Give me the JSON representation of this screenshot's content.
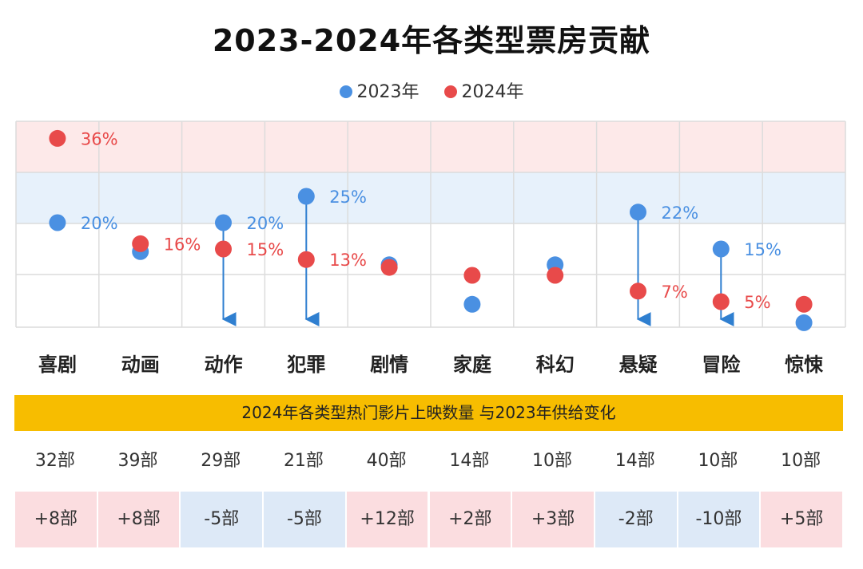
{
  "title": "2023-2024年各类型票房贡献",
  "legend": [
    {
      "label": "2023年",
      "color": "#4a90e2"
    },
    {
      "label": "2024年",
      "color": "#e84a4a"
    }
  ],
  "table_header": "2024年各类型热门影片上映数量 与2023年供给变化",
  "chart_data": {
    "type": "scatter",
    "title": "2023-2024年各类型票房贡献",
    "categories": [
      "喜剧",
      "动画",
      "动作",
      "犯罪",
      "剧情",
      "家庭",
      "科幻",
      "悬疑",
      "冒险",
      "惊悚"
    ],
    "ylim": [
      0,
      40
    ],
    "series": [
      {
        "name": "2023年",
        "color": "#4a90e2",
        "values": [
          20,
          14.5,
          20,
          25,
          12,
          4.5,
          12,
          22,
          15,
          1
        ]
      },
      {
        "name": "2024年",
        "color": "#e84a4a",
        "values": [
          36,
          16,
          15,
          13,
          11.5,
          10,
          10,
          7,
          5,
          4.5
        ]
      }
    ],
    "data_labels": [
      {
        "category": "喜剧",
        "series": "2024年",
        "text": "36%"
      },
      {
        "category": "喜剧",
        "series": "2023年",
        "text": "20%"
      },
      {
        "category": "动画",
        "series": "2024年",
        "text": "16%"
      },
      {
        "category": "动作",
        "series": "2023年",
        "text": "20%"
      },
      {
        "category": "动作",
        "series": "2024年",
        "text": "15%"
      },
      {
        "category": "犯罪",
        "series": "2023年",
        "text": "25%"
      },
      {
        "category": "犯罪",
        "series": "2024年",
        "text": "13%"
      },
      {
        "category": "悬疑",
        "series": "2023年",
        "text": "22%"
      },
      {
        "category": "悬疑",
        "series": "2024年",
        "text": "7%"
      },
      {
        "category": "冒险",
        "series": "2023年",
        "text": "15%"
      },
      {
        "category": "冒险",
        "series": "2024年",
        "text": "5%"
      }
    ],
    "decline_arrows": [
      "动作",
      "犯罪",
      "悬疑",
      "冒险"
    ],
    "grid": true,
    "legend_position": "top-center"
  },
  "table": {
    "counts": [
      "32部",
      "39部",
      "29部",
      "21部",
      "40部",
      "14部",
      "10部",
      "14部",
      "10部",
      "10部"
    ],
    "changes": [
      {
        "text": "+8部",
        "trend": "up"
      },
      {
        "text": "+8部",
        "trend": "up"
      },
      {
        "text": "-5部",
        "trend": "down"
      },
      {
        "text": "-5部",
        "trend": "down"
      },
      {
        "text": "+12部",
        "trend": "up"
      },
      {
        "text": "+2部",
        "trend": "up"
      },
      {
        "text": "+3部",
        "trend": "up"
      },
      {
        "text": "-2部",
        "trend": "down"
      },
      {
        "text": "-10部",
        "trend": "down"
      },
      {
        "text": "+5部",
        "trend": "up"
      }
    ],
    "colors": {
      "up": "#fbdde0",
      "down": "#dde9f7"
    }
  }
}
